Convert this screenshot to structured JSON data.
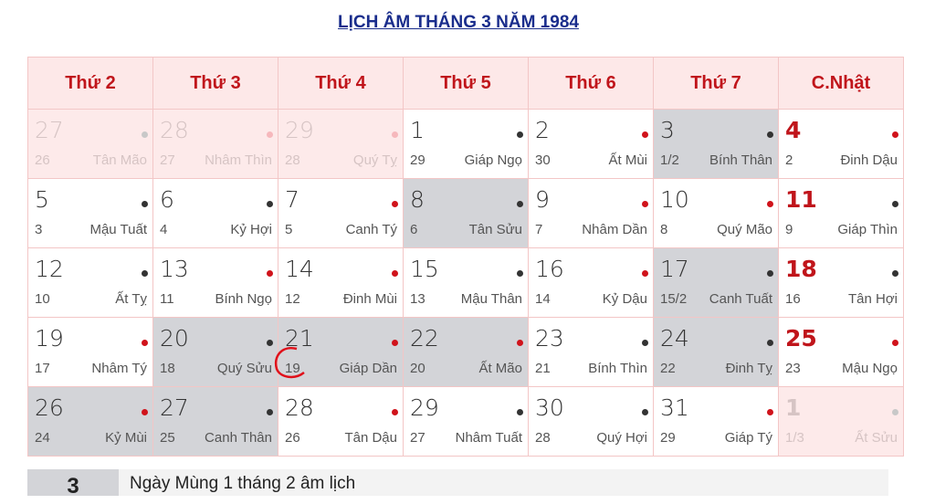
{
  "title": "LỊCH ÂM THÁNG 3 NĂM 1984",
  "headers": [
    "Thứ 2",
    "Thứ 3",
    "Thứ 4",
    "Thứ 5",
    "Thứ 6",
    "Thứ 7",
    "C.Nhật"
  ],
  "colors": {
    "red_dot": "#d0131b",
    "dark_dot": "#333333",
    "highlight": "#d3d4d8",
    "header_bg": "#fde8e8",
    "accent": "#c0151b"
  },
  "weeks": [
    [
      {
        "s": "27",
        "l": "26",
        "c": "Tân Mão",
        "d": "k",
        "st": "faded"
      },
      {
        "s": "28",
        "l": "27",
        "c": "Nhâm Thìn",
        "d": "r",
        "st": "faded"
      },
      {
        "s": "29",
        "l": "28",
        "c": "Quý Tỵ",
        "d": "r",
        "st": "faded"
      },
      {
        "s": "1",
        "l": "29",
        "c": "Giáp Ngọ",
        "d": "k"
      },
      {
        "s": "2",
        "l": "30",
        "c": "Ất Mùi",
        "d": "r"
      },
      {
        "s": "3",
        "l": "1/2",
        "c": "Bính Thân",
        "d": "k",
        "st": "gray"
      },
      {
        "s": "4",
        "l": "2",
        "c": "Đinh Dậu",
        "d": "r",
        "st": "sun"
      }
    ],
    [
      {
        "s": "5",
        "l": "3",
        "c": "Mậu Tuất",
        "d": "k"
      },
      {
        "s": "6",
        "l": "4",
        "c": "Kỷ Hợi",
        "d": "k"
      },
      {
        "s": "7",
        "l": "5",
        "c": "Canh Tý",
        "d": "r"
      },
      {
        "s": "8",
        "l": "6",
        "c": "Tân Sửu",
        "d": "k",
        "st": "gray"
      },
      {
        "s": "9",
        "l": "7",
        "c": "Nhâm Dần",
        "d": "r"
      },
      {
        "s": "10",
        "l": "8",
        "c": "Quý Mão",
        "d": "r"
      },
      {
        "s": "11",
        "l": "9",
        "c": "Giáp Thìn",
        "d": "k",
        "st": "sun"
      }
    ],
    [
      {
        "s": "12",
        "l": "10",
        "c": "Ất Tỵ",
        "d": "k"
      },
      {
        "s": "13",
        "l": "11",
        "c": "Bính Ngọ",
        "d": "r"
      },
      {
        "s": "14",
        "l": "12",
        "c": "Đinh Mùi",
        "d": "r"
      },
      {
        "s": "15",
        "l": "13",
        "c": "Mậu Thân",
        "d": "k"
      },
      {
        "s": "16",
        "l": "14",
        "c": "Kỷ Dậu",
        "d": "r"
      },
      {
        "s": "17",
        "l": "15/2",
        "c": "Canh Tuất",
        "d": "k",
        "st": "gray"
      },
      {
        "s": "18",
        "l": "16",
        "c": "Tân Hợi",
        "d": "k",
        "st": "sun"
      }
    ],
    [
      {
        "s": "19",
        "l": "17",
        "c": "Nhâm Tý",
        "d": "r"
      },
      {
        "s": "20",
        "l": "18",
        "c": "Quý Sửu",
        "d": "k",
        "st": "gray"
      },
      {
        "s": "21",
        "l": "19",
        "c": "Giáp Dần",
        "d": "r",
        "st": "gray"
      },
      {
        "s": "22",
        "l": "20",
        "c": "Ất Mão",
        "d": "r",
        "st": "gray"
      },
      {
        "s": "23",
        "l": "21",
        "c": "Bính Thìn",
        "d": "k"
      },
      {
        "s": "24",
        "l": "22",
        "c": "Đinh Tỵ",
        "d": "k",
        "st": "gray"
      },
      {
        "s": "25",
        "l": "23",
        "c": "Mậu Ngọ",
        "d": "r",
        "st": "sun"
      }
    ],
    [
      {
        "s": "26",
        "l": "24",
        "c": "Kỷ Mùi",
        "d": "r",
        "st": "gray"
      },
      {
        "s": "27",
        "l": "25",
        "c": "Canh Thân",
        "d": "k",
        "st": "gray"
      },
      {
        "s": "28",
        "l": "26",
        "c": "Tân Dậu",
        "d": "r"
      },
      {
        "s": "29",
        "l": "27",
        "c": "Nhâm Tuất",
        "d": "k"
      },
      {
        "s": "30",
        "l": "28",
        "c": "Quý Hợi",
        "d": "k"
      },
      {
        "s": "31",
        "l": "29",
        "c": "Giáp Tý",
        "d": "r"
      },
      {
        "s": "1",
        "l": "1/3",
        "c": "Ất Sửu",
        "d": "k",
        "st": "faded sun"
      }
    ]
  ],
  "footer": {
    "day": "3",
    "text": "Ngày Mùng 1 tháng 2 âm lịch"
  }
}
